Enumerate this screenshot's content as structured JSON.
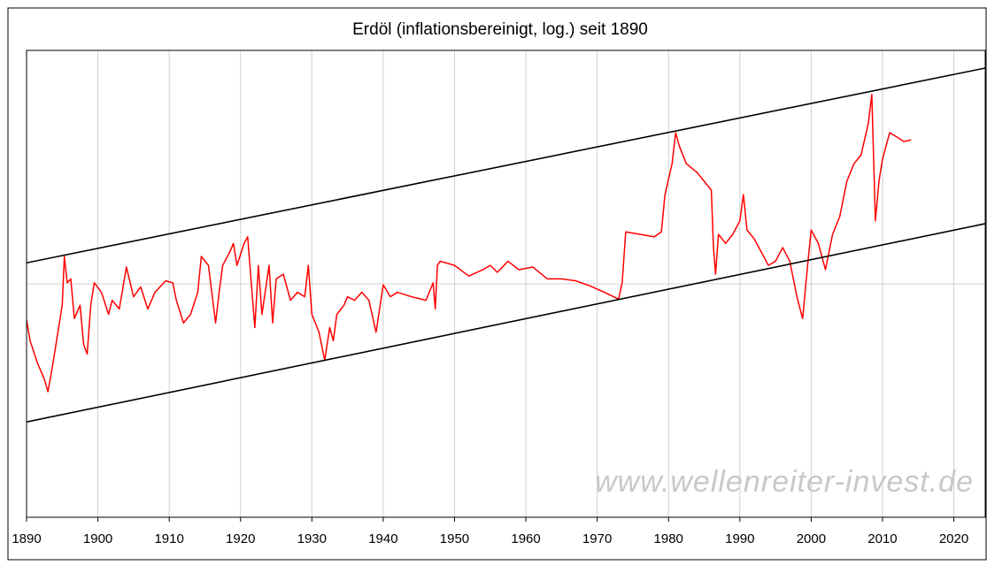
{
  "chart_data": {
    "type": "line",
    "title": "Erdöl (inflationsbereinigt, log.) seit 1890",
    "watermark": "www.wellenreiter-invest.de",
    "xlim": [
      1890,
      2024.4
    ],
    "xticks": [
      1890,
      1900,
      1910,
      1920,
      1930,
      1940,
      1950,
      1960,
      1970,
      1980,
      1990,
      2000,
      2010,
      2020
    ],
    "ylim": [
      1,
      100
    ],
    "yticks": [
      10
    ],
    "ytick_labels_shown": false,
    "log_y": true,
    "grid": true,
    "series": [
      {
        "color": "#ff0000",
        "x": [
          1890,
          1890.5,
          1891.5,
          1892.5,
          1893,
          1893.5,
          1894,
          1894.5,
          1895,
          1895.3,
          1895.7,
          1896.2,
          1896.7,
          1897.5,
          1898,
          1898.5,
          1899,
          1899.5,
          1900.5,
          1901.5,
          1902,
          1903,
          1904,
          1905,
          1906,
          1907,
          1908,
          1909.5,
          1910.5,
          1911,
          1912,
          1913,
          1914,
          1914.5,
          1915.5,
          1916.5,
          1917,
          1917.5,
          1918.5,
          1919,
          1919.5,
          1920.5,
          1921,
          1921.5,
          1922,
          1922.5,
          1923,
          1924,
          1924.5,
          1925,
          1926,
          1927,
          1928,
          1929,
          1929.5,
          1930,
          1931,
          1931.8,
          1932.5,
          1933,
          1933.5,
          1934.5,
          1935,
          1936,
          1937,
          1938,
          1939,
          1940,
          1941,
          1942,
          1944,
          1946,
          1947,
          1947.3,
          1947.6,
          1948,
          1950,
          1952,
          1954,
          1955,
          1956,
          1957.5,
          1959,
          1961,
          1963,
          1965,
          1967,
          1969,
          1971,
          1973,
          1973.5,
          1974,
          1976,
          1978,
          1979,
          1979.5,
          1980.5,
          1981,
          1981.5,
          1982.5,
          1984,
          1985,
          1986,
          1986.3,
          1986.6,
          1987,
          1988,
          1989,
          1990,
          1990.5,
          1991,
          1992,
          1993,
          1994,
          1995,
          1996,
          1997,
          1998,
          1998.8,
          1999.5,
          2000,
          2001,
          2002,
          2003,
          2004,
          2005,
          2006,
          2007,
          2008,
          2008.5,
          2009,
          2009.5,
          2010,
          2011,
          2012,
          2013,
          2014
        ],
        "values": [
          7.0,
          5.7,
          4.6,
          3.9,
          3.45,
          4.2,
          5.2,
          6.5,
          8.1,
          13.1,
          10.1,
          10.5,
          7.1,
          8.1,
          5.5,
          5.0,
          8.1,
          10.1,
          9.2,
          7.4,
          8.5,
          7.8,
          11.8,
          8.8,
          9.7,
          7.8,
          9.2,
          10.3,
          10.1,
          8.5,
          6.8,
          7.4,
          9.2,
          13.1,
          12.0,
          6.8,
          9.2,
          12.0,
          13.7,
          14.9,
          12.0,
          14.9,
          15.9,
          10.1,
          6.5,
          12.0,
          7.4,
          12.0,
          6.8,
          10.5,
          11.0,
          8.5,
          9.2,
          8.8,
          12.0,
          7.4,
          6.2,
          4.7,
          6.5,
          5.7,
          7.4,
          8.1,
          8.8,
          8.5,
          9.2,
          8.5,
          6.2,
          9.9,
          8.8,
          9.2,
          8.8,
          8.5,
          10.1,
          7.8,
          12.0,
          12.5,
          12.0,
          10.8,
          11.5,
          12.0,
          11.2,
          12.5,
          11.5,
          11.8,
          10.5,
          10.5,
          10.3,
          9.8,
          9.2,
          8.6,
          10.1,
          16.7,
          16.3,
          15.9,
          16.7,
          24.1,
          32.7,
          44.4,
          39.0,
          32.7,
          30.0,
          27.5,
          25.2,
          14.3,
          11.0,
          16.3,
          14.9,
          16.3,
          18.6,
          24.1,
          17.0,
          15.6,
          13.7,
          12.0,
          12.5,
          14.3,
          12.5,
          8.8,
          7.1,
          12.0,
          17.0,
          14.9,
          11.5,
          16.3,
          19.4,
          27.5,
          32.7,
          35.7,
          48.5,
          64.7,
          18.6,
          27.5,
          34.2,
          44.4,
          42.6,
          40.7,
          41.4
        ]
      },
      {
        "color": "#000000",
        "x": [
          1890,
          2024.4
        ],
        "values": [
          12.3,
          84
        ]
      },
      {
        "color": "#000000",
        "x": [
          1890,
          2024.4
        ],
        "values": [
          2.56,
          18.1
        ]
      }
    ]
  }
}
